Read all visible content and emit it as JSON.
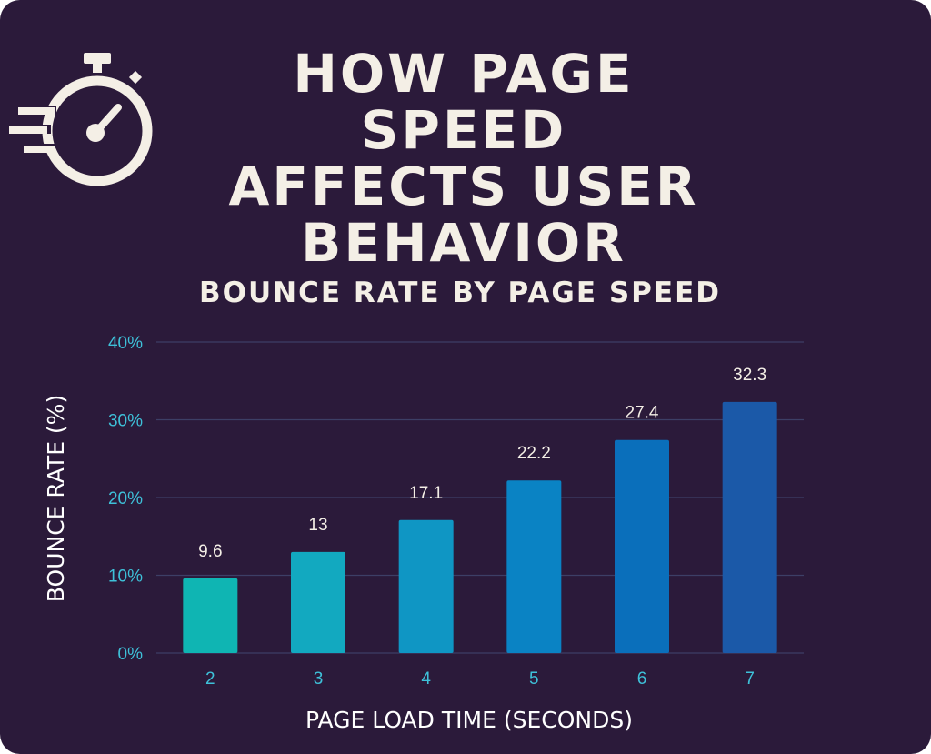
{
  "header": {
    "title_lines": [
      "HOW PAGE SPEED",
      "AFFECTS USER",
      "BEHAVIOR"
    ],
    "logo_icon": "stopwatch-speed-icon"
  },
  "chart_data": {
    "type": "bar",
    "title": "BOUNCE RATE BY PAGE SPEED",
    "xlabel": "PAGE LOAD TIME (SECONDS)",
    "ylabel": "BOUNCE RATE (%)",
    "categories": [
      "2",
      "3",
      "4",
      "5",
      "6",
      "7"
    ],
    "values": [
      9.6,
      13,
      17.1,
      22.2,
      27.4,
      32.3
    ],
    "data_labels": [
      "9.6",
      "13",
      "17.1",
      "22.2",
      "27.4",
      "32.3"
    ],
    "ylim": [
      0,
      40
    ],
    "yticks": [
      0,
      10,
      20,
      30,
      40
    ],
    "ytick_labels": [
      "0%",
      "10%",
      "20%",
      "30%",
      "40%"
    ],
    "grid": true,
    "bar_colors": [
      "#0fb5b3",
      "#12a9c0",
      "#0f96c4",
      "#0a83c4",
      "#0a6fbb",
      "#1b59a8"
    ],
    "colors": {
      "background": "#2b1a3a",
      "text": "#f4efe6",
      "tick": "#3ec1d9"
    }
  }
}
